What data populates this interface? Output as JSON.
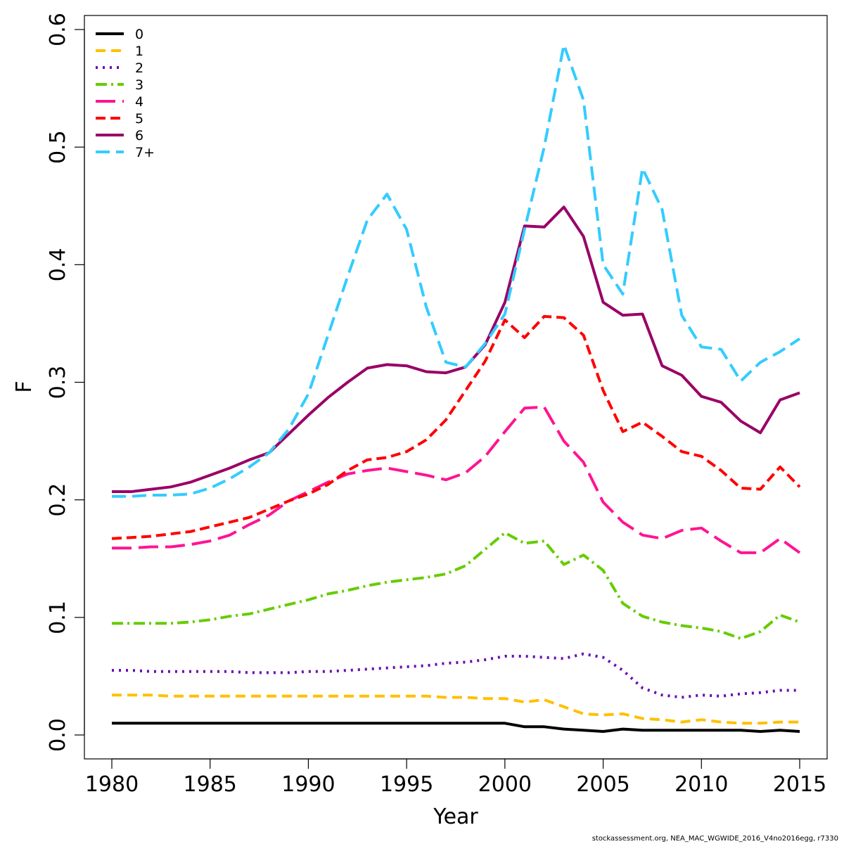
{
  "chart_data": {
    "type": "line",
    "xlabel": "Year",
    "ylabel": "F",
    "xlim": [
      1980,
      2015
    ],
    "ylim": [
      0,
      0.6
    ],
    "x_ticks": [
      1980,
      1985,
      1990,
      1995,
      2000,
      2005,
      2010,
      2015
    ],
    "y_ticks": [
      "0.0",
      "0.1",
      "0.2",
      "0.3",
      "0.4",
      "0.5",
      "0.6"
    ],
    "legend_position": "top-left",
    "grid": false,
    "x": [
      1980,
      1981,
      1982,
      1983,
      1984,
      1985,
      1986,
      1987,
      1988,
      1989,
      1990,
      1991,
      1992,
      1993,
      1994,
      1995,
      1996,
      1997,
      1998,
      1999,
      2000,
      2001,
      2002,
      2003,
      2004,
      2005,
      2006,
      2007,
      2008,
      2009,
      2010,
      2011,
      2012,
      2013,
      2014,
      2015
    ],
    "series": [
      {
        "name": "0",
        "color": "#000000",
        "dash": "",
        "values": [
          0.01,
          0.01,
          0.01,
          0.01,
          0.01,
          0.01,
          0.01,
          0.01,
          0.01,
          0.01,
          0.01,
          0.01,
          0.01,
          0.01,
          0.01,
          0.01,
          0.01,
          0.01,
          0.01,
          0.01,
          0.01,
          0.007,
          0.007,
          0.005,
          0.004,
          0.003,
          0.005,
          0.004,
          0.004,
          0.004,
          0.004,
          0.004,
          0.004,
          0.003,
          0.004,
          0.003
        ]
      },
      {
        "name": "1",
        "color": "#FFC000",
        "dash": "14 8",
        "values": [
          0.034,
          0.034,
          0.034,
          0.033,
          0.033,
          0.033,
          0.033,
          0.033,
          0.033,
          0.033,
          0.033,
          0.033,
          0.033,
          0.033,
          0.033,
          0.033,
          0.033,
          0.032,
          0.032,
          0.031,
          0.031,
          0.028,
          0.03,
          0.024,
          0.018,
          0.017,
          0.018,
          0.014,
          0.013,
          0.011,
          0.013,
          0.011,
          0.01,
          0.01,
          0.011,
          0.011
        ]
      },
      {
        "name": "2",
        "color": "#6A0DAD",
        "dash": "3 7",
        "values": [
          0.055,
          0.055,
          0.054,
          0.054,
          0.054,
          0.054,
          0.054,
          0.053,
          0.053,
          0.053,
          0.054,
          0.054,
          0.055,
          0.056,
          0.057,
          0.058,
          0.059,
          0.061,
          0.062,
          0.064,
          0.067,
          0.067,
          0.066,
          0.065,
          0.069,
          0.066,
          0.055,
          0.04,
          0.034,
          0.032,
          0.034,
          0.033,
          0.035,
          0.036,
          0.038,
          0.038
        ]
      },
      {
        "name": "3",
        "color": "#66CC00",
        "dash": "16 6 3 6",
        "values": [
          0.095,
          0.095,
          0.095,
          0.095,
          0.096,
          0.098,
          0.101,
          0.103,
          0.107,
          0.111,
          0.115,
          0.12,
          0.123,
          0.127,
          0.13,
          0.132,
          0.134,
          0.137,
          0.144,
          0.158,
          0.172,
          0.163,
          0.165,
          0.145,
          0.153,
          0.14,
          0.112,
          0.101,
          0.096,
          0.093,
          0.091,
          0.088,
          0.082,
          0.088,
          0.102,
          0.096
        ]
      },
      {
        "name": "4",
        "color": "#FF1493",
        "dash": "28 10",
        "values": [
          0.159,
          0.159,
          0.16,
          0.16,
          0.162,
          0.165,
          0.17,
          0.179,
          0.187,
          0.199,
          0.207,
          0.215,
          0.222,
          0.225,
          0.227,
          0.224,
          0.221,
          0.217,
          0.223,
          0.237,
          0.258,
          0.278,
          0.279,
          0.25,
          0.232,
          0.198,
          0.181,
          0.17,
          0.167,
          0.174,
          0.176,
          0.165,
          0.155,
          0.155,
          0.167,
          0.155
        ]
      },
      {
        "name": "5",
        "color": "#FF0000",
        "dash": "14 7",
        "values": [
          0.167,
          0.168,
          0.169,
          0.171,
          0.173,
          0.177,
          0.181,
          0.185,
          0.192,
          0.199,
          0.205,
          0.213,
          0.225,
          0.234,
          0.236,
          0.241,
          0.251,
          0.268,
          0.293,
          0.318,
          0.353,
          0.338,
          0.356,
          0.355,
          0.34,
          0.293,
          0.258,
          0.266,
          0.254,
          0.241,
          0.237,
          0.225,
          0.21,
          0.209,
          0.228,
          0.211
        ]
      },
      {
        "name": "6",
        "color": "#990066",
        "dash": "",
        "values": [
          0.207,
          0.207,
          0.209,
          0.211,
          0.215,
          0.221,
          0.227,
          0.234,
          0.24,
          0.256,
          0.272,
          0.287,
          0.3,
          0.312,
          0.315,
          0.314,
          0.309,
          0.308,
          0.313,
          0.332,
          0.368,
          0.433,
          0.432,
          0.449,
          0.424,
          0.368,
          0.357,
          0.358,
          0.314,
          0.306,
          0.288,
          0.283,
          0.267,
          0.257,
          0.285,
          0.291
        ]
      },
      {
        "name": "7+",
        "color": "#33CCFF",
        "dash": "20 9",
        "values": [
          0.203,
          0.203,
          0.204,
          0.204,
          0.205,
          0.21,
          0.218,
          0.228,
          0.24,
          0.26,
          0.29,
          0.34,
          0.39,
          0.438,
          0.46,
          0.43,
          0.364,
          0.317,
          0.313,
          0.333,
          0.358,
          0.43,
          0.5,
          0.587,
          0.54,
          0.4,
          0.375,
          0.482,
          0.447,
          0.357,
          0.33,
          0.328,
          0.301,
          0.317,
          0.326,
          0.337
        ]
      }
    ]
  },
  "credit": "stockassessment.org, NEA_MAC_WGWIDE_2016_V4no2016egg, r7330"
}
